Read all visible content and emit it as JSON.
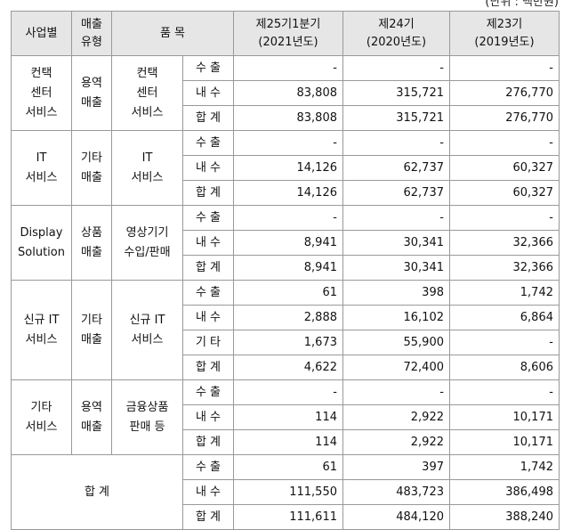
{
  "unit": "(단위 : 백만원)",
  "header": {
    "business": "사업별",
    "sales_type": "매출\n유형",
    "item": "품 목",
    "periods": [
      "제25기1분기\n(2021년도)",
      "제24기\n(2020년도)",
      "제23기\n(2019년도)"
    ]
  },
  "groups": [
    {
      "business": "컨택\n센터\n서비스",
      "sales_type": "용역\n매출",
      "item": "컨택\n센터\n서비스",
      "rows": [
        {
          "label": "수 출",
          "values": [
            "-",
            "-",
            "-"
          ]
        },
        {
          "label": "내 수",
          "values": [
            "83,808",
            "315,721",
            "276,770"
          ]
        },
        {
          "label": "합 계",
          "values": [
            "83,808",
            "315,721",
            "276,770"
          ]
        }
      ]
    },
    {
      "business": "IT\n서비스",
      "sales_type": "기타\n매출",
      "item": "IT\n서비스",
      "rows": [
        {
          "label": "수 출",
          "values": [
            "-",
            "-",
            "-"
          ]
        },
        {
          "label": "내 수",
          "values": [
            "14,126",
            "62,737",
            "60,327"
          ]
        },
        {
          "label": "합 계",
          "values": [
            "14,126",
            "62,737",
            "60,327"
          ]
        }
      ]
    },
    {
      "business": "Display\nSolution",
      "sales_type": "상품\n매출",
      "item": "영상기기\n수입/판매",
      "rows": [
        {
          "label": "수 출",
          "values": [
            "-",
            "-",
            "-"
          ]
        },
        {
          "label": "내 수",
          "values": [
            "8,941",
            "30,341",
            "32,366"
          ]
        },
        {
          "label": "합 계",
          "values": [
            "8,941",
            "30,341",
            "32,366"
          ]
        }
      ]
    },
    {
      "business": "신규 IT\n서비스",
      "sales_type": "기타\n매출",
      "item": "신규 IT\n서비스",
      "rows": [
        {
          "label": "수 출",
          "values": [
            "61",
            "398",
            "1,742"
          ]
        },
        {
          "label": "내 수",
          "values": [
            "2,888",
            "16,102",
            "6,864"
          ]
        },
        {
          "label": "기 타",
          "values": [
            "1,673",
            "55,900",
            "-"
          ]
        },
        {
          "label": "합 계",
          "values": [
            "4,622",
            "72,400",
            "8,606"
          ]
        }
      ]
    },
    {
      "business": "기타\n서비스",
      "sales_type": "용역\n매출",
      "item": "금융상품\n판매 등",
      "rows": [
        {
          "label": "수 출",
          "values": [
            "-",
            "-",
            "-"
          ]
        },
        {
          "label": "내 수",
          "values": [
            "114",
            "2,922",
            "10,171"
          ]
        },
        {
          "label": "합 계",
          "values": [
            "114",
            "2,922",
            "10,171"
          ]
        }
      ]
    }
  ],
  "total": {
    "label": "합 계",
    "rows": [
      {
        "label": "수 출",
        "values": [
          "61",
          "397",
          "1,742"
        ]
      },
      {
        "label": "내 수",
        "values": [
          "111,550",
          "483,723",
          "386,498"
        ]
      },
      {
        "label": "합 계",
        "values": [
          "111,611",
          "484,120",
          "388,240"
        ]
      }
    ]
  }
}
